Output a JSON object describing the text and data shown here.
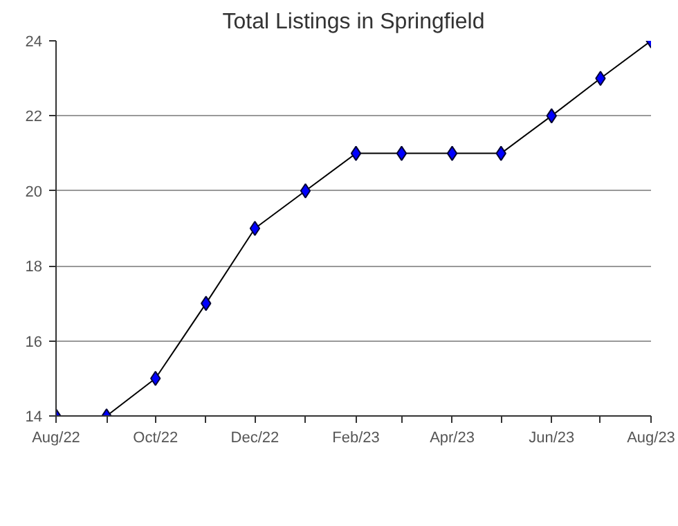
{
  "chart_data": {
    "type": "line",
    "title": "Total Listings in Springfield",
    "x": [
      "2022-08",
      "2022-09",
      "2022-10",
      "2022-11",
      "2022-12",
      "2023-01",
      "2023-02",
      "2023-03",
      "2023-04",
      "2023-05",
      "2023-06",
      "2023-07",
      "2023-08"
    ],
    "series": [
      {
        "color": "#0000ff",
        "values": [
          14,
          14,
          15,
          17,
          19,
          20,
          21,
          21,
          21,
          21,
          22,
          23,
          24
        ]
      }
    ],
    "xlim": [
      "2022-08",
      "2023-08"
    ],
    "xticks": [
      {
        "value": "2022-08",
        "label": "Aug/22"
      },
      {
        "value": "2022-09",
        "label": null
      },
      {
        "value": "2022-10",
        "label": "Oct/22"
      },
      {
        "value": "2022-11",
        "label": null
      },
      {
        "value": "2022-12",
        "label": "Dec/22"
      },
      {
        "value": "2023-01",
        "label": null
      },
      {
        "value": "2023-02",
        "label": "Feb/23"
      },
      {
        "value": "2023-03",
        "label": null
      },
      {
        "value": "2023-04",
        "label": "Apr/23"
      },
      {
        "value": "2023-05",
        "label": null
      },
      {
        "value": "2023-06",
        "label": "Jun/23"
      },
      {
        "value": "2023-07",
        "label": null
      },
      {
        "value": "2023-08",
        "label": "Aug/23"
      }
    ],
    "ylim": [
      14,
      24
    ],
    "yticks": [
      14,
      16,
      18,
      20,
      22,
      24
    ],
    "grid": "y",
    "marker": "diamond",
    "line_style": "solid"
  }
}
